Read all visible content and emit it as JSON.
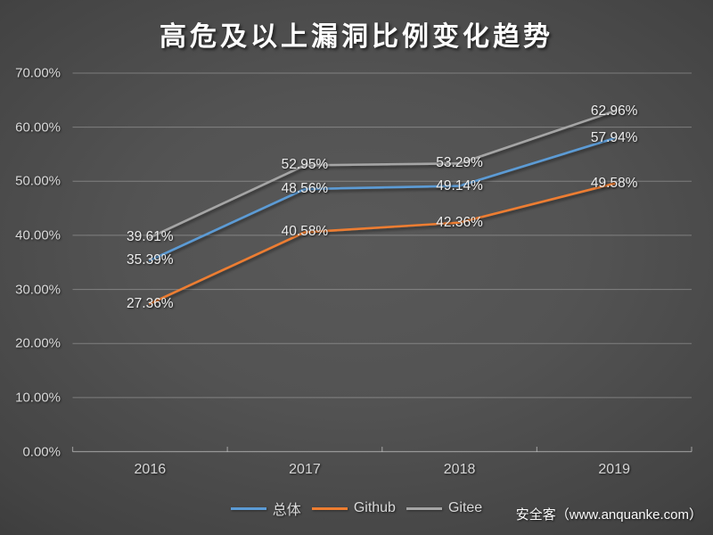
{
  "title": "高危及以上漏洞比例变化趋势",
  "watermark": "安全客（www.anquanke.com）",
  "chart_data": {
    "type": "line",
    "title": "高危及以上漏洞比例变化趋势",
    "categories": [
      "2016",
      "2017",
      "2018",
      "2019"
    ],
    "series": [
      {
        "name": "总体",
        "color": "#5B9BD5",
        "values": [
          35.39,
          48.56,
          49.14,
          57.94
        ],
        "labels": [
          "35.39%",
          "48.56%",
          "49.14%",
          "57.94%"
        ]
      },
      {
        "name": "Github",
        "color": "#ED7D31",
        "values": [
          27.36,
          40.58,
          42.36,
          49.58
        ],
        "labels": [
          "27.36%",
          "40.58%",
          "42.36%",
          "49.58%"
        ]
      },
      {
        "name": "Gitee",
        "color": "#A5A5A5",
        "values": [
          39.61,
          52.95,
          53.29,
          62.96
        ],
        "labels": [
          "39.61%",
          "52.95%",
          "53.29%",
          "62.96%"
        ]
      }
    ],
    "y_ticks": [
      "0.00%",
      "10.00%",
      "20.00%",
      "30.00%",
      "40.00%",
      "50.00%",
      "60.00%",
      "70.00%"
    ],
    "ylim": [
      0,
      70
    ],
    "xlabel": "",
    "ylabel": "",
    "grid": true,
    "legend_position": "bottom",
    "background": "dark-radial-gradient"
  }
}
